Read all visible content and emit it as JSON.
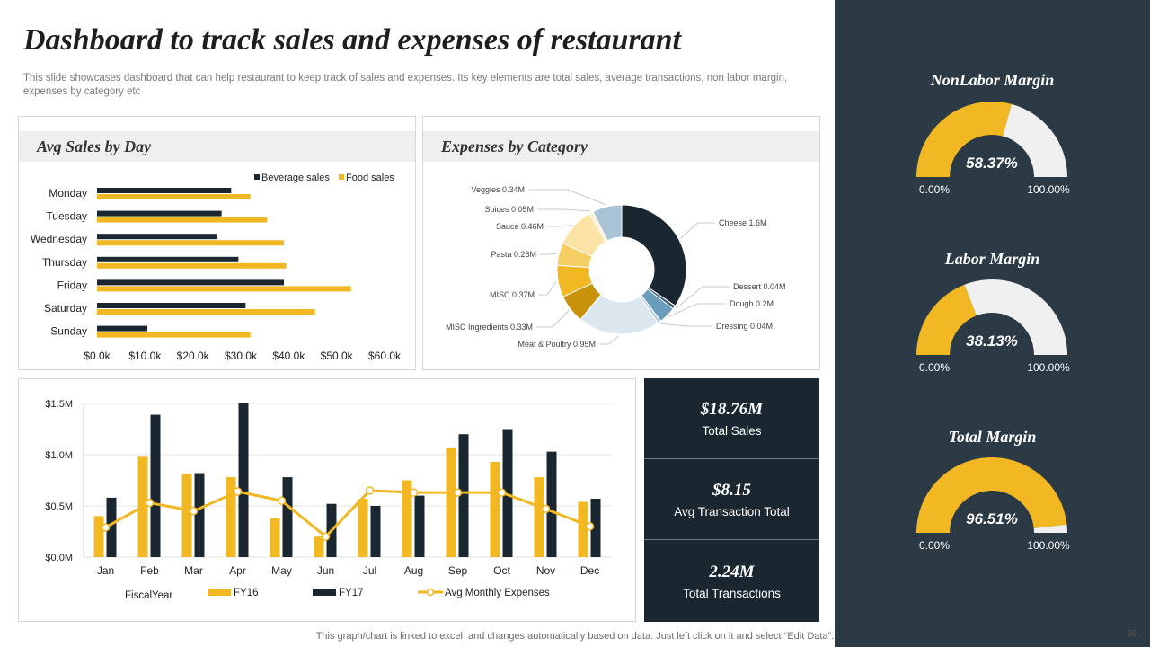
{
  "title": "Dashboard to track sales and expenses of restaurant",
  "subtitle": "This slide showcases dashboard that can help restaurant to keep track of sales and expenses. Its key elements are total sales, average transactions, non labor margin, expenses by category etc",
  "footer": "This graph/chart is linked to excel,  and changes automatically based on data. Just left click on it and select “Edit Data”.",
  "page_number": "69",
  "colors": {
    "navy": "#1a2731",
    "gold": "#f2b824",
    "grey": "#efefef",
    "dark_panel": "#2b3a45"
  },
  "kpis": [
    {
      "value": "$18.76M",
      "label": "Total Sales"
    },
    {
      "value": "$8.15",
      "label": "Avg Transaction Total"
    },
    {
      "value": "2.24M",
      "label": "Total Transactions"
    }
  ],
  "gauges": [
    {
      "title": "NonLabor Margin",
      "value": 58.37,
      "value_label": "58.37%",
      "min_label": "0.00%",
      "max_label": "100.00%"
    },
    {
      "title": "Labor Margin",
      "value": 38.13,
      "value_label": "38.13%",
      "min_label": "0.00%",
      "max_label": "100.00%"
    },
    {
      "title": "Total Margin",
      "value": 96.51,
      "value_label": "96.51%",
      "min_label": "0.00%",
      "max_label": "100.00%"
    }
  ],
  "chart_data": [
    {
      "type": "bar",
      "orientation": "horizontal",
      "title": "Avg Sales by Day",
      "categories": [
        "Monday",
        "Tuesday",
        "Wednesday",
        "Thursday",
        "Friday",
        "Saturday",
        "Sunday"
      ],
      "series": [
        {
          "name": "Beverage sales",
          "color": "#1a2731",
          "values": [
            28000,
            26000,
            25000,
            29500,
            39000,
            31000,
            10500
          ]
        },
        {
          "name": "Food sales",
          "color": "#f2b824",
          "values": [
            32000,
            35500,
            39000,
            39500,
            53000,
            45500,
            32000
          ]
        }
      ],
      "xlim": [
        0,
        60000
      ],
      "ticks": [
        "$0.0k",
        "$10.0k",
        "$20.0k",
        "$30.0k",
        "$40.0k",
        "$50.0k",
        "$60.0k"
      ],
      "legend": "top-right"
    },
    {
      "type": "pie",
      "variant": "donut",
      "title": "Expenses by Category",
      "slices": [
        {
          "label": "Cheese 1.6M",
          "value": 1.6,
          "color": "#1a2731"
        },
        {
          "label": "Dessert 0.04M",
          "value": 0.04,
          "color": "#3a5d73"
        },
        {
          "label": "Dough 0.2M",
          "value": 0.2,
          "color": "#6a9cbb"
        },
        {
          "label": "Dressing  0.04M",
          "value": 0.04,
          "color": "#b9d0de"
        },
        {
          "label": "Meat & Poultry 0.95M",
          "value": 0.95,
          "color": "#dbe6ee"
        },
        {
          "label": "MISC Ingredients 0.33M",
          "value": 0.33,
          "color": "#c8930a"
        },
        {
          "label": "MISC 0.37M",
          "value": 0.37,
          "color": "#f2b824"
        },
        {
          "label": "Pasta 0.26M",
          "value": 0.26,
          "color": "#f6cf64"
        },
        {
          "label": "Sauce 0.46M",
          "value": 0.46,
          "color": "#fbe3a6"
        },
        {
          "label": "Spices 0.05M",
          "value": 0.05,
          "color": "#fff1cf"
        },
        {
          "label": "Veggies 0.34M",
          "value": 0.34,
          "color": "#a9c4d6"
        }
      ]
    },
    {
      "type": "bar",
      "orientation": "vertical",
      "title": "",
      "categories": [
        "Jan",
        "Feb",
        "Mar",
        "Apr",
        "May",
        "Jun",
        "Jul",
        "Aug",
        "Sep",
        "Oct",
        "Nov",
        "Dec"
      ],
      "series": [
        {
          "name": "FY16",
          "color": "#f2b824",
          "values": [
            0.4,
            0.98,
            0.81,
            0.78,
            0.38,
            0.2,
            0.57,
            0.75,
            1.07,
            0.93,
            0.78,
            0.54
          ]
        },
        {
          "name": "FY17",
          "color": "#1a2731",
          "values": [
            0.58,
            1.39,
            0.82,
            1.5,
            0.78,
            0.52,
            0.5,
            0.6,
            1.2,
            1.25,
            1.03,
            0.57
          ]
        },
        {
          "name": "Avg Monthly Expenses",
          "type": "line",
          "color": "#f2b824",
          "values": [
            0.29,
            0.53,
            0.45,
            0.64,
            0.55,
            0.2,
            0.65,
            0.63,
            0.63,
            0.63,
            0.47,
            0.3
          ]
        }
      ],
      "ylim": [
        0,
        1.5
      ],
      "ticks": [
        "$0.0M",
        "$0.5M",
        "$1.0M",
        "$1.5M"
      ],
      "xlabel": "FiscalYear",
      "legend": "bottom"
    }
  ]
}
